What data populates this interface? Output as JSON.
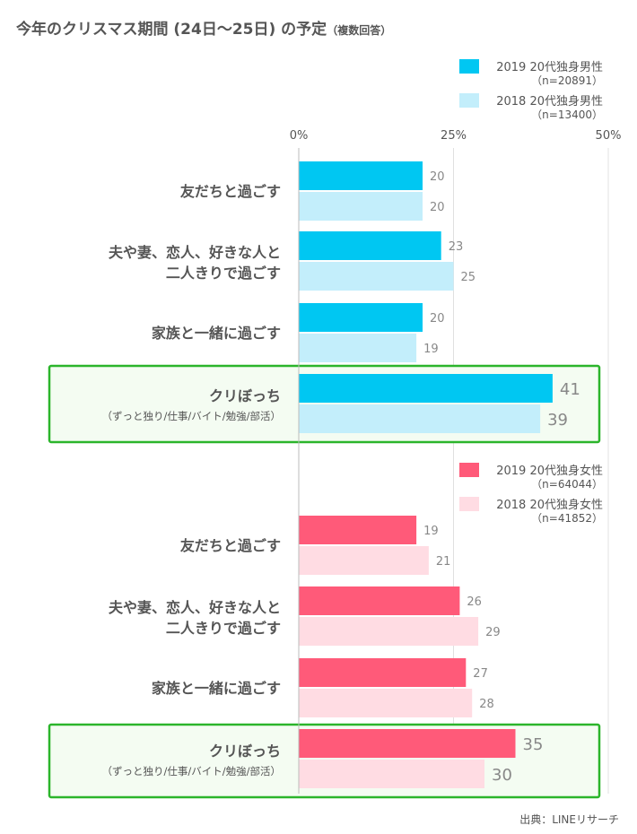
{
  "title": "今年のクリスマス期間 (24日～25日) の予定",
  "title_note": "（複数回答）",
  "source": "出典：LINEリサーチ",
  "chart_data": [
    {
      "type": "bar",
      "orientation": "horizontal",
      "xlim": [
        0,
        50
      ],
      "ticks": [
        "0%",
        "25%",
        "50%"
      ],
      "tick_values": [
        0,
        25,
        50
      ],
      "categories": [
        [
          "友だちと過ごす"
        ],
        [
          "夫や妻、恋人、好きな人と",
          "二人きりで過ごす"
        ],
        [
          "家族と一緒に過ごす"
        ],
        [
          "クリぼっち",
          "（ずっと独り/仕事/バイト/勉強/部活）"
        ]
      ],
      "highlight_index": 3,
      "series": [
        {
          "name": "2019 20代独身男性",
          "n": "（n=20891）",
          "color": "#00c7f2",
          "values": [
            20,
            23,
            20,
            41
          ]
        },
        {
          "name": "2018 20代独身男性",
          "n": "（n=13400）",
          "color": "#c3eefb",
          "values": [
            20,
            25,
            19,
            39
          ]
        }
      ]
    },
    {
      "type": "bar",
      "orientation": "horizontal",
      "xlim": [
        0,
        50
      ],
      "categories": [
        [
          "友だちと過ごす"
        ],
        [
          "夫や妻、恋人、好きな人と",
          "二人きりで過ごす"
        ],
        [
          "家族と一緒に過ごす"
        ],
        [
          "クリぼっち",
          "（ずっと独り/仕事/バイト/勉強/部活）"
        ]
      ],
      "highlight_index": 3,
      "series": [
        {
          "name": "2019 20代独身女性",
          "n": "（n=64044）",
          "color": "#ff5a79",
          "values": [
            19,
            26,
            27,
            35
          ]
        },
        {
          "name": "2018 20代独身女性",
          "n": "（n=41852）",
          "color": "#ffdce3",
          "values": [
            21,
            29,
            28,
            30
          ]
        }
      ]
    }
  ],
  "colors": {
    "highlight_border": "#2bb52b",
    "highlight_fill": "#f4fcf2",
    "grid": "#e0e0e0",
    "axis": "#bbbbbb",
    "text": "#555555",
    "value_text": "#888888"
  }
}
